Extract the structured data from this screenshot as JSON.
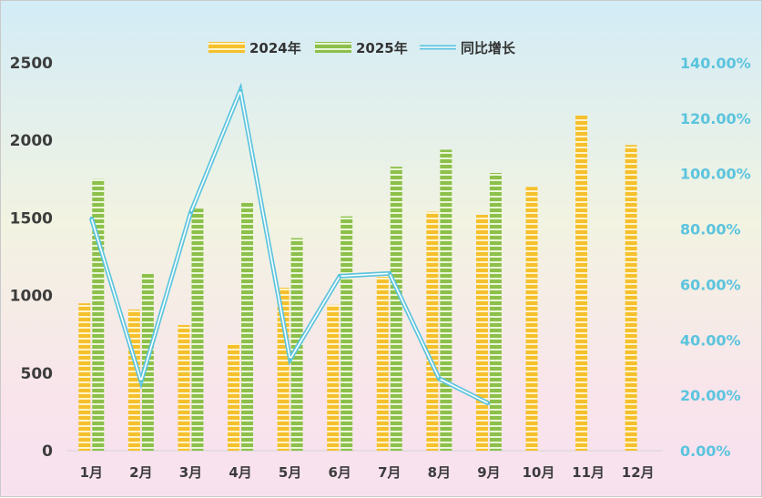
{
  "chart_data": {
    "type": "bar",
    "title": "",
    "xlabel": "",
    "ylabel": "",
    "categories": [
      "1月",
      "2月",
      "3月",
      "4月",
      "5月",
      "6月",
      "7月",
      "8月",
      "9月",
      "10月",
      "11月",
      "12月"
    ],
    "series": [
      {
        "name": "2024年",
        "type": "bar",
        "axis": "left",
        "color": "#f5c02c",
        "values": [
          950,
          910,
          810,
          690,
          1050,
          940,
          1120,
          1540,
          1520,
          1700,
          2160,
          1970
        ]
      },
      {
        "name": "2025年",
        "type": "bar",
        "axis": "left",
        "color": "#8cc04a",
        "values": [
          1750,
          1140,
          1560,
          1600,
          1370,
          1510,
          1830,
          1940,
          1790,
          null,
          null,
          null
        ]
      },
      {
        "name": "同比增长",
        "type": "line",
        "axis": "right",
        "color": "#5bc4de",
        "values": [
          0.84,
          0.25,
          0.86,
          1.3,
          0.33,
          0.63,
          0.64,
          0.26,
          0.17,
          null,
          null,
          null
        ]
      }
    ],
    "ylim": [
      0,
      2500
    ],
    "yticks": [
      "0",
      "500",
      "1000",
      "1500",
      "2000",
      "2500"
    ],
    "y2lim": [
      0,
      1.4
    ],
    "y2ticks": [
      "0.00%",
      "20.00%",
      "40.00%",
      "60.00%",
      "80.00%",
      "100.00%",
      "120.00%",
      "140.00%"
    ],
    "legend_position": "top-center",
    "grid": false
  }
}
